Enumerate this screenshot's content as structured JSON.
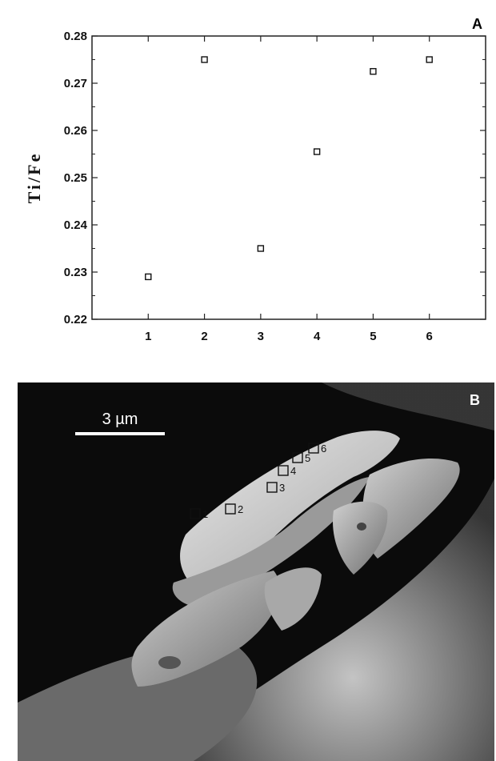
{
  "chart_data": {
    "type": "scatter",
    "title": "",
    "panel_label": "A",
    "xlabel": "",
    "ylabel": "Ti/Fe",
    "x_ticks": [
      "1",
      "2",
      "3",
      "4",
      "5",
      "6"
    ],
    "y_ticks": [
      "0.22",
      "0.23",
      "0.24",
      "0.25",
      "0.26",
      "0.27",
      "0.28"
    ],
    "xlim": [
      0,
      7
    ],
    "ylim": [
      0.22,
      0.28
    ],
    "grid": false,
    "marker": "hollow-square",
    "series": [
      {
        "x": [
          1,
          2,
          3,
          4,
          5,
          6
        ],
        "y": [
          0.229,
          0.275,
          0.235,
          0.2555,
          0.2725,
          0.275
        ]
      }
    ]
  },
  "micrograph": {
    "panel_label": "B",
    "scale_bar_label": "3 µm",
    "spot_labels": [
      "1",
      "2",
      "3",
      "4",
      "5",
      "6"
    ]
  }
}
